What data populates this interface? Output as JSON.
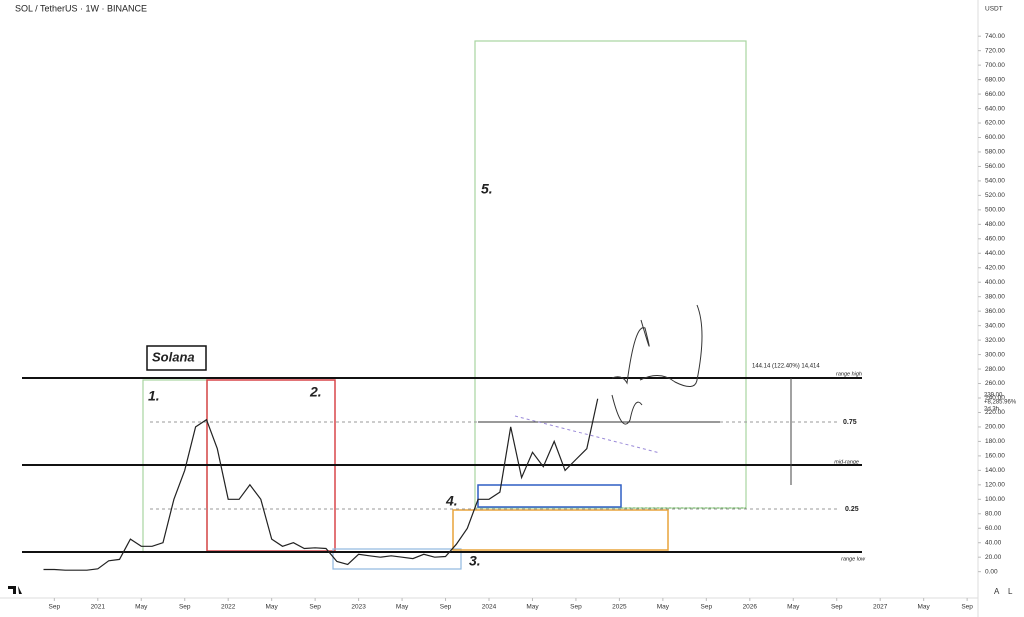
{
  "chart_data": {
    "type": "line",
    "title": "SOL / TetherUS · 1W · BINANCE",
    "y_label": "USDT",
    "x": [
      "2020-08",
      "2020-09",
      "2020-10",
      "2020-11",
      "2020-12",
      "2021-01",
      "2021-02",
      "2021-03",
      "2021-04",
      "2021-05",
      "2021-06",
      "2021-07",
      "2021-08",
      "2021-09",
      "2021-10",
      "2021-11",
      "2021-12",
      "2022-01",
      "2022-02",
      "2022-03",
      "2022-04",
      "2022-05",
      "2022-06",
      "2022-07",
      "2022-08",
      "2022-09",
      "2022-10",
      "2022-11",
      "2022-12",
      "2023-01",
      "2023-02",
      "2023-03",
      "2023-04",
      "2023-05",
      "2023-06",
      "2023-07",
      "2023-08",
      "2023-09",
      "2023-10",
      "2023-11",
      "2023-12",
      "2024-01",
      "2024-02",
      "2024-03",
      "2024-04",
      "2024-05",
      "2024-06",
      "2024-07",
      "2024-08",
      "2024-09",
      "2024-10",
      "2024-11"
    ],
    "series": [
      {
        "name": "SOL",
        "color": "#222222",
        "values": [
          3,
          3,
          2,
          2,
          2,
          4,
          15,
          17,
          45,
          35,
          35,
          40,
          100,
          140,
          200,
          210,
          170,
          100,
          100,
          120,
          100,
          45,
          35,
          40,
          32,
          33,
          32,
          14,
          10,
          24,
          22,
          20,
          22,
          20,
          18,
          24,
          20,
          21,
          38,
          60,
          100,
          100,
          110,
          200,
          130,
          165,
          145,
          180,
          140,
          155,
          170,
          239
        ]
      }
    ],
    "xlim": [
      "2020-04",
      "2027-10"
    ],
    "ylim": [
      -35,
      790
    ],
    "xticks": [
      {
        "value": "2020-09",
        "label": "Sep"
      },
      {
        "value": "2021-01",
        "label": "2021"
      },
      {
        "value": "2021-05",
        "label": "May"
      },
      {
        "value": "2021-09",
        "label": "Sep"
      },
      {
        "value": "2022-01",
        "label": "2022"
      },
      {
        "value": "2022-05",
        "label": "May"
      },
      {
        "value": "2022-09",
        "label": "Sep"
      },
      {
        "value": "2023-01",
        "label": "2023"
      },
      {
        "value": "2023-05",
        "label": "May"
      },
      {
        "value": "2023-09",
        "label": "Sep"
      },
      {
        "value": "2024-01",
        "label": "2024"
      },
      {
        "value": "2024-05",
        "label": "May"
      },
      {
        "value": "2024-09",
        "label": "Sep"
      },
      {
        "value": "2025-01",
        "label": "2025"
      },
      {
        "value": "2025-05",
        "label": "May"
      },
      {
        "value": "2025-09",
        "label": "Sep"
      },
      {
        "value": "2026-01",
        "label": "2026"
      },
      {
        "value": "2026-05",
        "label": "May"
      },
      {
        "value": "2026-09",
        "label": "Sep"
      },
      {
        "value": "2027-01",
        "label": "2027"
      },
      {
        "value": "2027-05",
        "label": "May"
      },
      {
        "value": "2027-09",
        "label": "Sep"
      }
    ],
    "yticks": [
      {
        "value": 0,
        "label": "0.00"
      },
      {
        "value": 20,
        "label": "20.00"
      },
      {
        "value": 40,
        "label": "40.00"
      },
      {
        "value": 60,
        "label": "60.00"
      },
      {
        "value": 80,
        "label": "80.00"
      },
      {
        "value": 100,
        "label": "100.00"
      },
      {
        "value": 120,
        "label": "120.00"
      },
      {
        "value": 140,
        "label": "140.00"
      },
      {
        "value": 160,
        "label": "160.00"
      },
      {
        "value": 180,
        "label": "180.00"
      },
      {
        "value": 200,
        "label": "200.00"
      },
      {
        "value": 220,
        "label": "220.00"
      },
      {
        "value": 240,
        "label": "240.00"
      },
      {
        "value": 260,
        "label": "260.00"
      },
      {
        "value": 280,
        "label": "280.00"
      },
      {
        "value": 300,
        "label": "300.00"
      },
      {
        "value": 320,
        "label": "320.00"
      },
      {
        "value": 340,
        "label": "340.00"
      },
      {
        "value": 360,
        "label": "360.00"
      },
      {
        "value": 380,
        "label": "380.00"
      },
      {
        "value": 400,
        "label": "400.00"
      },
      {
        "value": 420,
        "label": "420.00"
      },
      {
        "value": 440,
        "label": "440.00"
      },
      {
        "value": 460,
        "label": "460.00"
      },
      {
        "value": 480,
        "label": "480.00"
      },
      {
        "value": 500,
        "label": "500.00"
      },
      {
        "value": 520,
        "label": "520.00"
      },
      {
        "value": 540,
        "label": "540.00"
      },
      {
        "value": 560,
        "label": "560.00"
      },
      {
        "value": 580,
        "label": "580.00"
      },
      {
        "value": 600,
        "label": "600.00"
      },
      {
        "value": 620,
        "label": "620.00"
      },
      {
        "value": 640,
        "label": "640.00"
      },
      {
        "value": 660,
        "label": "660.00"
      },
      {
        "value": 680,
        "label": "680.00"
      },
      {
        "value": 700,
        "label": "700.00"
      },
      {
        "value": 720,
        "label": "720.00"
      },
      {
        "value": 740,
        "label": "740.00"
      }
    ],
    "annotations": [
      "Solana",
      "1.",
      "2.",
      "3.",
      "4.",
      "5.",
      "range high",
      "0.75",
      "mid-range",
      "0.25",
      "range low",
      "144.14 (122.40%) 14,414"
    ],
    "last_price": [
      "239.00",
      "+8,285.96%",
      "2d 3h"
    ],
    "buttons": [
      "A",
      "L"
    ]
  }
}
